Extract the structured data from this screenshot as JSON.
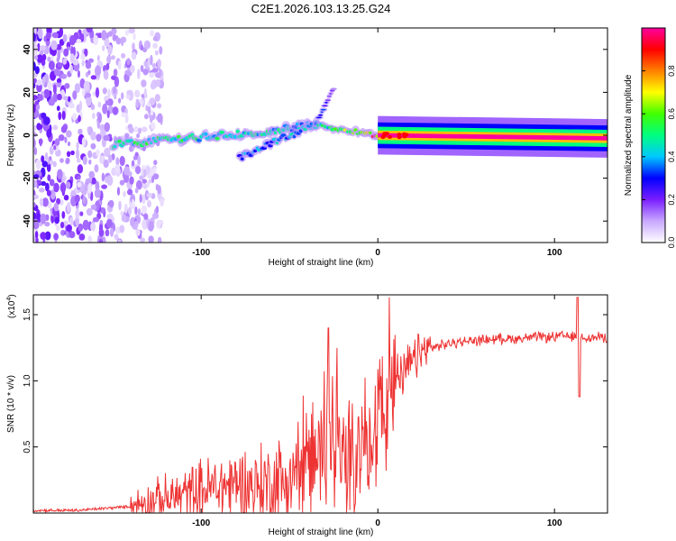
{
  "figure": {
    "title": "C2E1.2026.103.13.25.G24"
  },
  "chart_data": [
    {
      "type": "heatmap",
      "title": "C2E1.2026.103.13.25.G24",
      "xlabel": "Height of straight line (km)",
      "ylabel": "Frequency (Hz)",
      "xlim": [
        -195,
        130
      ],
      "ylim": [
        -50,
        50
      ],
      "xticks": [
        -100,
        0,
        100
      ],
      "yticks": [
        -40,
        -20,
        0,
        20,
        40
      ],
      "colorbar": {
        "label": "Normalized spectral amplitude",
        "range": [
          0,
          1
        ],
        "ticks": [
          0.0,
          0.2,
          0.4,
          0.6,
          0.8
        ],
        "colormap": [
          "#ffffff",
          "#c8a8ff",
          "#7a1fff",
          "#0000ff",
          "#00c8ff",
          "#00ff80",
          "#40ff00",
          "#ffff00",
          "#ff8000",
          "#ff0000",
          "#ff00a0"
        ]
      },
      "features": [
        {
          "name": "scatter-noise-region",
          "x_range": [
            -195,
            -130
          ],
          "freq_range": [
            -50,
            50
          ],
          "amplitude": 0.1
        },
        {
          "name": "main-tone-start",
          "x": -150,
          "freq": -4.5,
          "amplitude": 0.5
        },
        {
          "name": "main-tone-mid",
          "x": -60,
          "freq": 2,
          "amplitude": 0.45
        },
        {
          "name": "secondary-tone-start",
          "x": -78,
          "freq": -10,
          "amplitude": 0.35
        },
        {
          "name": "secondary-tone-end",
          "x": -35,
          "freq": 5,
          "amplitude": 0.4
        },
        {
          "name": "upper-branch-end",
          "x": -25,
          "freq": 22,
          "amplitude": 0.15
        },
        {
          "name": "main-tone-stable",
          "x": 0,
          "freq": 0,
          "amplitude": 0.85
        },
        {
          "name": "main-tone-end",
          "x": 130,
          "freq": -1.5,
          "amplitude": 1.0
        }
      ]
    },
    {
      "type": "line",
      "xlabel": "Height of straight line (km)",
      "ylabel": "SNR (10 * v/v)",
      "y_multiplier": "(x10^4)",
      "y_multiplier_base": "(x10",
      "y_multiplier_exp": "4",
      "y_multiplier_close": ")",
      "xlim": [
        -195,
        130
      ],
      "ylim": [
        0,
        1.65
      ],
      "xticks": [
        -100,
        0,
        100
      ],
      "yticks": [
        0.5,
        1.0,
        1.5
      ],
      "series": [
        {
          "name": "SNR",
          "color": "#ee3333",
          "x": [
            -195,
            -170,
            -150,
            -140,
            -130,
            -120,
            -110,
            -100,
            -90,
            -80,
            -70,
            -60,
            -50,
            -45,
            -40,
            -35,
            -30,
            -25,
            -20,
            -15,
            -10,
            -5,
            0,
            5,
            10,
            15,
            20,
            25,
            30,
            40,
            50,
            60,
            70,
            80,
            90,
            100,
            105,
            110,
            115,
            120,
            125,
            130
          ],
          "y": [
            0.02,
            0.02,
            0.04,
            0.05,
            0.09,
            0.1,
            0.14,
            0.17,
            0.2,
            0.22,
            0.2,
            0.22,
            0.26,
            0.32,
            0.38,
            0.43,
            0.52,
            0.42,
            0.4,
            0.45,
            0.5,
            0.65,
            0.72,
            0.8,
            0.96,
            1.06,
            1.15,
            1.21,
            1.25,
            1.28,
            1.3,
            1.31,
            1.32,
            1.32,
            1.33,
            1.33,
            1.34,
            1.33,
            1.34,
            1.32,
            1.33,
            1.33
          ]
        }
      ],
      "annotations": [
        {
          "x": 113,
          "y": 1.63,
          "note": "spike"
        },
        {
          "x": 114,
          "y": 0.88,
          "note": "dip"
        },
        {
          "x": -28,
          "y": 1.4,
          "note": "peak"
        }
      ]
    }
  ]
}
